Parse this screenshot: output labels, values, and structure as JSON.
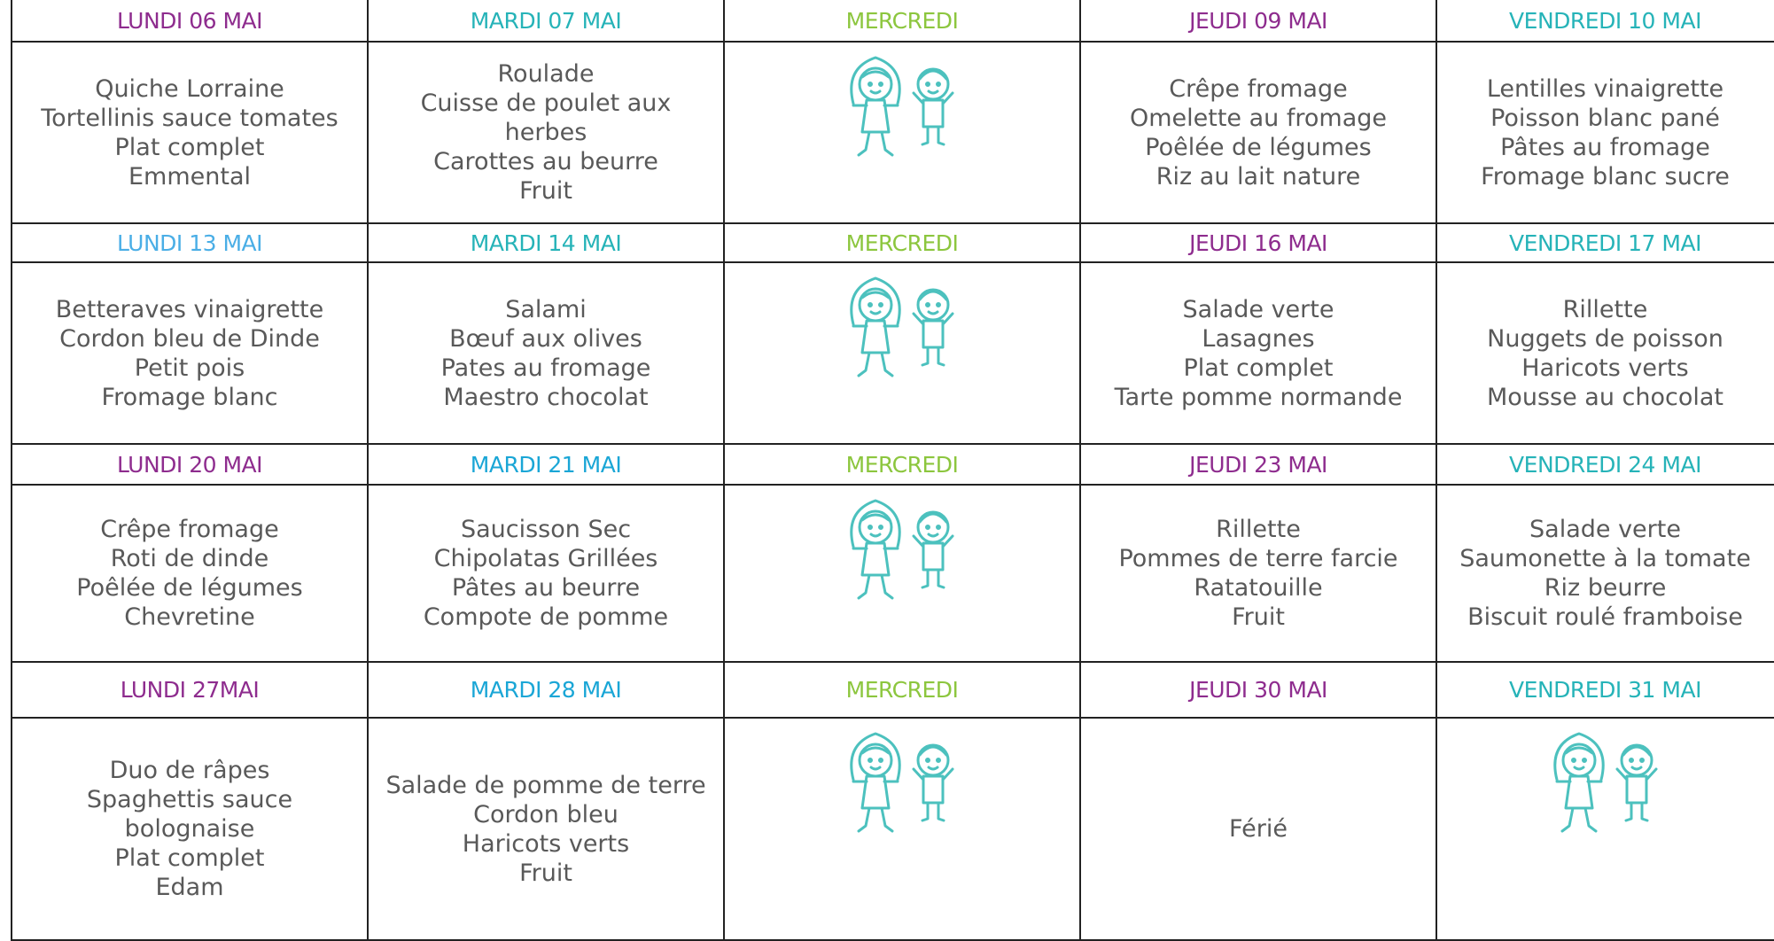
{
  "weeks": [
    {
      "days": [
        {
          "header": "LUNDI 06 MAI",
          "color": "#8e2c8e",
          "items": [
            "Quiche Lorraine",
            "Tortellinis sauce tomates",
            "Plat complet",
            "Emmental"
          ]
        },
        {
          "header": "MARDI 07 MAI",
          "color": "#26b3b8",
          "items": [
            "Roulade",
            "Cuisse de poulet aux herbes",
            "Carottes au beurre",
            "Fruit"
          ]
        },
        {
          "header": "MERCREDI",
          "color": "#8cc63e",
          "items": []
        },
        {
          "header": "JEUDI 09 MAI",
          "color": "#8e2c8e",
          "items": [
            "Crêpe fromage",
            "Omelette au fromage",
            "Poêlée de légumes",
            "Riz au lait nature"
          ]
        },
        {
          "header": "VENDREDI 10 MAI",
          "color": "#26b3b8",
          "items": [
            "Lentilles vinaigrette",
            "Poisson blanc pané",
            "Pâtes au fromage",
            "Fromage blanc sucre"
          ]
        }
      ]
    },
    {
      "days": [
        {
          "header": "LUNDI 13 MAI",
          "color": "#4aaee6",
          "items": [
            "Betteraves vinaigrette",
            "Cordon bleu de Dinde",
            "Petit pois",
            "Fromage blanc"
          ]
        },
        {
          "header": "MARDI 14 MAI",
          "color": "#26b3b8",
          "items": [
            "Salami",
            "Bœuf aux olives",
            "Pates au fromage",
            "Maestro chocolat"
          ]
        },
        {
          "header": "MERCREDI",
          "color": "#8cc63e",
          "items": []
        },
        {
          "header": "JEUDI 16 MAI",
          "color": "#8e2c8e",
          "items": [
            "Salade verte",
            "Lasagnes",
            "Plat complet",
            "Tarte pomme normande"
          ]
        },
        {
          "header": "VENDREDI 17 MAI",
          "color": "#26b3b8",
          "items": [
            "Rillette",
            "Nuggets de poisson",
            "Haricots verts",
            "Mousse au chocolat"
          ]
        }
      ]
    },
    {
      "days": [
        {
          "header": "LUNDI 20 MAI",
          "color": "#8e2c8e",
          "items": [
            "Crêpe fromage",
            "Roti de dinde",
            "Poêlée de légumes",
            "Chevretine"
          ]
        },
        {
          "header": "MARDI  21 MAI",
          "color": "#1aa6d6",
          "items": [
            "Saucisson Sec",
            "Chipolatas Grillées",
            "Pâtes au beurre",
            "Compote de pomme"
          ]
        },
        {
          "header": "MERCREDI",
          "color": "#8cc63e",
          "items": []
        },
        {
          "header": "JEUDI 23 MAI",
          "color": "#8e2c8e",
          "items": [
            "Rillette",
            "Pommes de terre farcie",
            "Ratatouille",
            "Fruit"
          ]
        },
        {
          "header": "VENDREDI 24 MAI",
          "color": "#26b3b8",
          "items": [
            "Salade verte",
            "Saumonette à la tomate",
            "Riz beurre",
            "Biscuit roulé framboise"
          ]
        }
      ]
    },
    {
      "days": [
        {
          "header": "LUNDI 27MAI",
          "color": "#8e2c8e",
          "items": [
            "Duo de râpes",
            "Spaghettis sauce bolognaise",
            "Plat complet",
            "Edam"
          ]
        },
        {
          "header": "MARDI  28 MAI",
          "color": "#1aa6d6",
          "items": [
            "Salade de pomme de terre",
            "Cordon bleu",
            "Haricots verts",
            "Fruit"
          ]
        },
        {
          "header": "MERCREDI",
          "color": "#8cc63e",
          "items": []
        },
        {
          "header": "JEUDI 30 MAI",
          "color": "#8e2c8e",
          "items": [
            "Férié"
          ]
        },
        {
          "header": "VENDREDI 31 MAI",
          "color": "#26b3b8",
          "items": []
        }
      ]
    }
  ]
}
